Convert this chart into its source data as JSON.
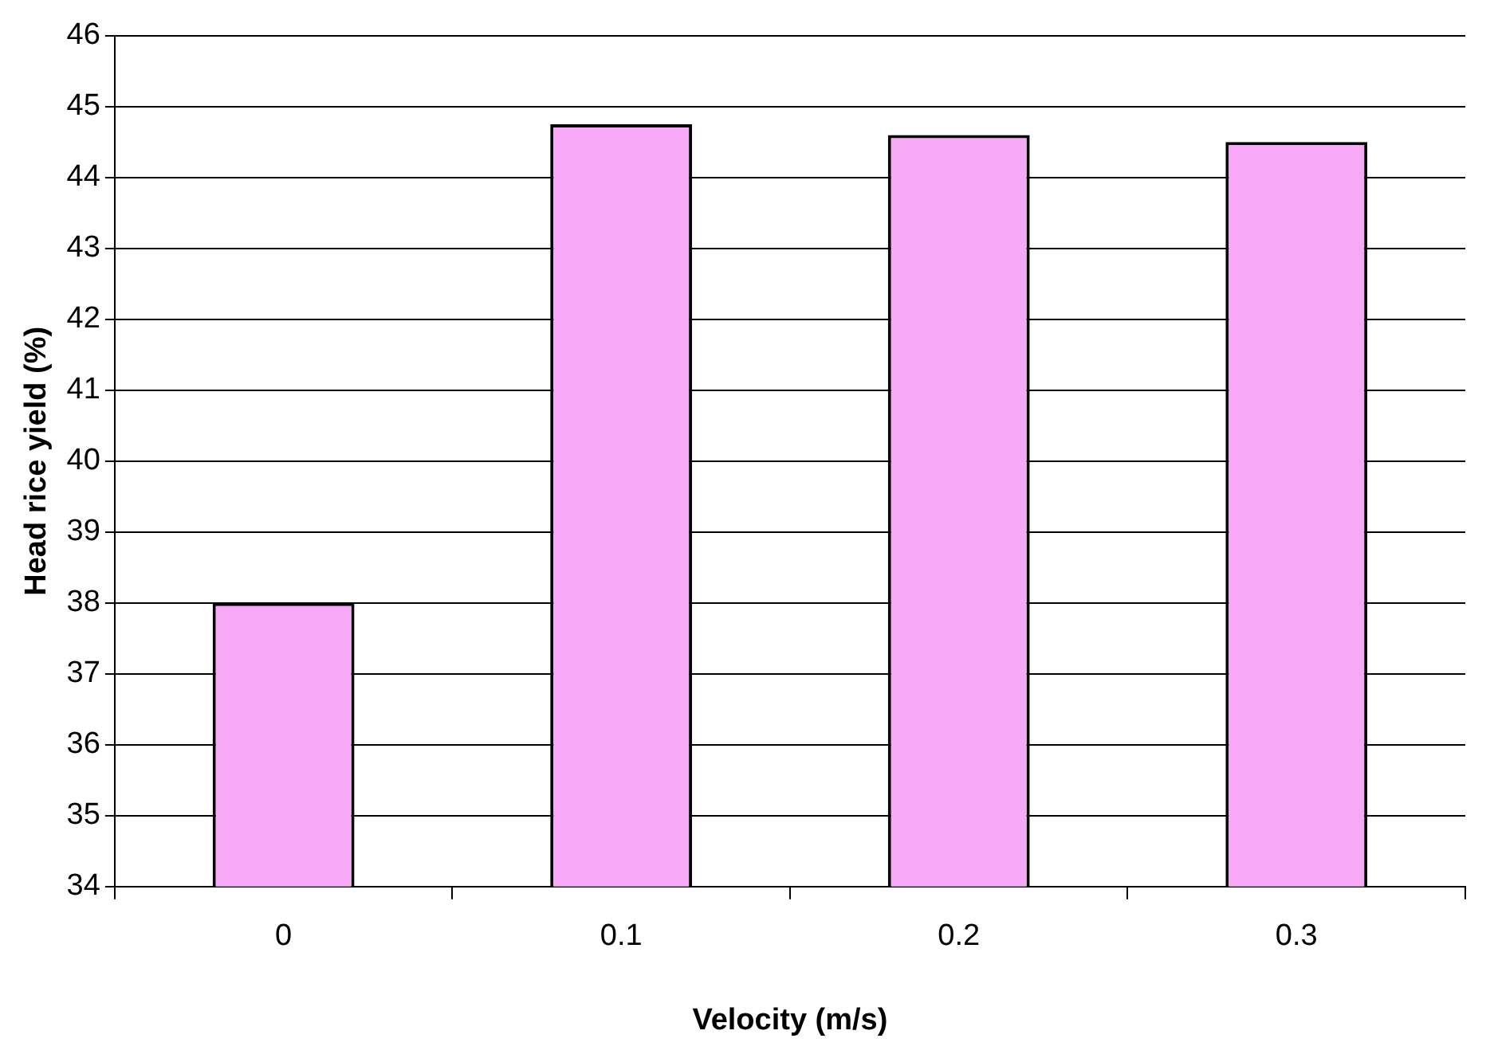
{
  "chart_data": {
    "type": "bar",
    "xlabel": "Velocity (m/s)",
    "ylabel": "Head rice yield (%)",
    "categories": [
      "0",
      "0.1",
      "0.2",
      "0.3"
    ],
    "values": [
      38.0,
      44.75,
      44.6,
      44.5
    ],
    "color": "#f7a8f7",
    "ylim": [
      34,
      46
    ],
    "yticks": [
      34,
      35,
      36,
      37,
      38,
      39,
      40,
      41,
      42,
      43,
      44,
      45,
      46
    ],
    "grid": "y",
    "legend": false
  }
}
